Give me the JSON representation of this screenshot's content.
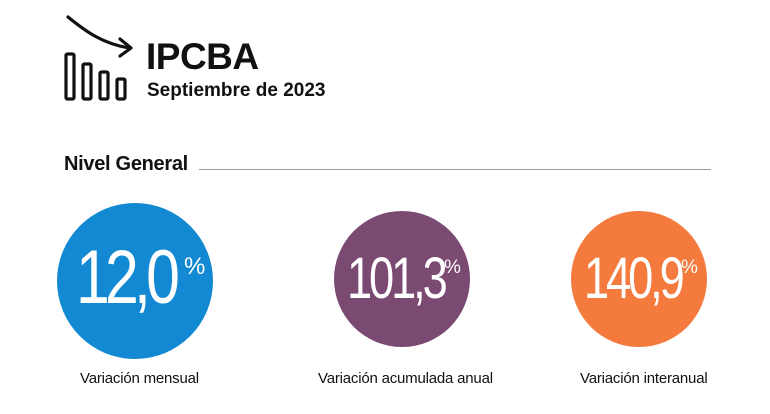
{
  "header": {
    "title": "IPCBA",
    "subtitle": "Septiembre de 2023",
    "icon": "bar-chart-trend-down-icon"
  },
  "section": {
    "title": "Nivel General"
  },
  "indicators": [
    {
      "value": "12,0",
      "unit": "%",
      "label": "Variación mensual",
      "color": "#1289d2"
    },
    {
      "value": "101,3",
      "unit": "%",
      "label": "Variación acumulada anual",
      "color": "#7b4a73"
    },
    {
      "value": "140,9",
      "unit": "%",
      "label": "Variación interanual",
      "color": "#f47a3e"
    }
  ]
}
